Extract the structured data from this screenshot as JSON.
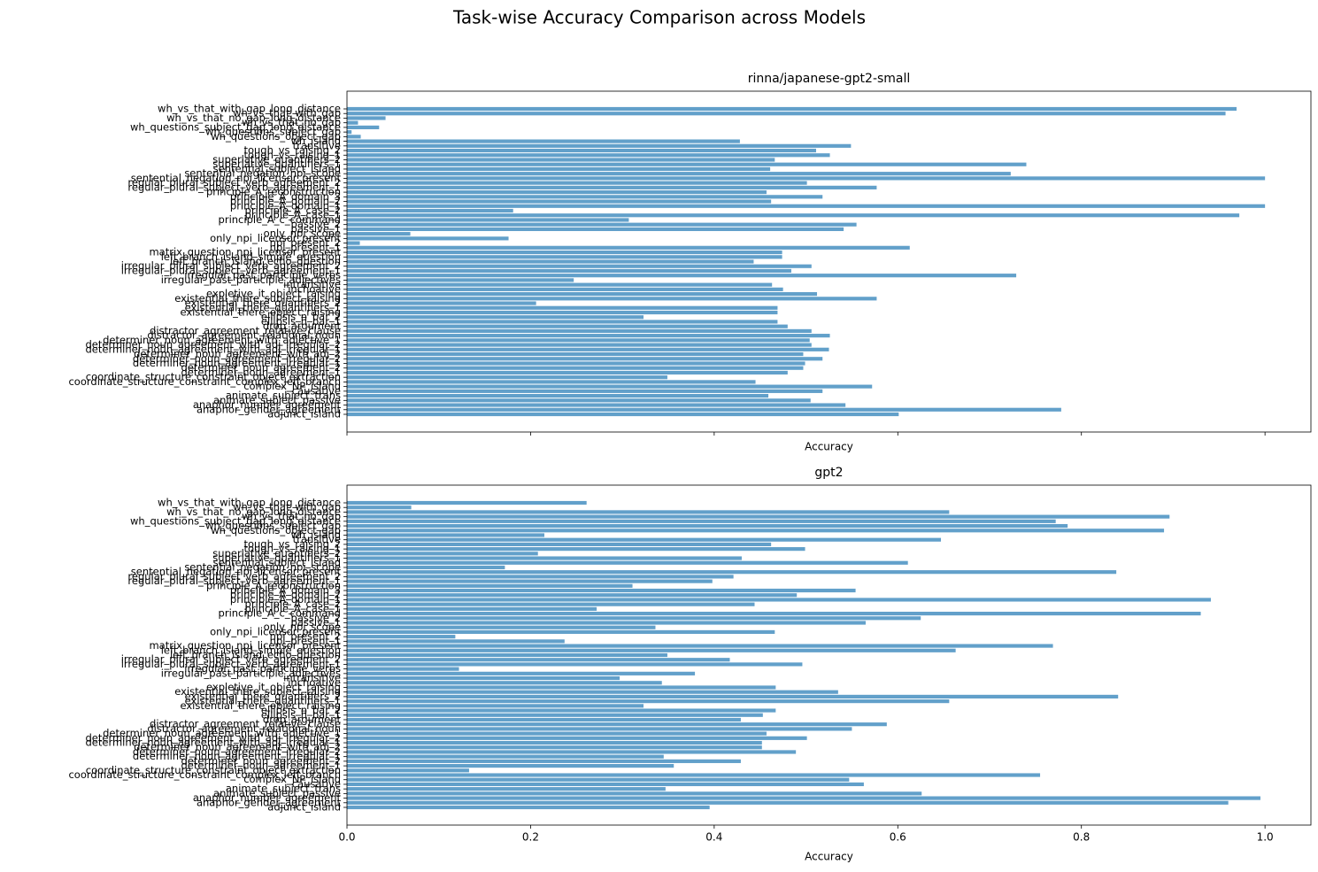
{
  "title": "Task-wise Accuracy Comparison across Models",
  "chart_data": [
    {
      "type": "barh",
      "title": "rinna/japanese-gpt2-small",
      "xlabel": "Accuracy",
      "color": "#1f77b4",
      "xlim": [
        0,
        1.05
      ],
      "xticks": [
        0,
        0.2,
        0.4,
        0.6,
        0.8,
        1.0
      ],
      "categories": [
        "adjunct_island",
        "anaphor_gender_agreement",
        "anaphor_number_agreement",
        "animate_subject_passive",
        "animate_subject_trans",
        "causative",
        "complex_NP_island",
        "coordinate_structure_constraint_complex_left_branch",
        "coordinate_structure_constraint_object_extraction",
        "determiner_noun_agreement_1",
        "determiner_noun_agreement_2",
        "determiner_noun_agreement_irregular_1",
        "determiner_noun_agreement_irregular_2",
        "determiner_noun_agreement_with_adj_2",
        "determiner_noun_agreement_with_adj_irregular_1",
        "determiner_noun_agreement_with_adj_irregular_2",
        "determiner_noun_agreement_with_adjective_1",
        "distractor_agreement_relational_noun",
        "distractor_agreement_relative_clause",
        "drop_argument",
        "ellipsis_n_bar_1",
        "ellipsis_n_bar_2",
        "existential_there_object_raising",
        "existential_there_quantifiers_1",
        "existential_there_quantifiers_2",
        "existential_there_subject_raising",
        "expletive_it_object_raising",
        "inchoative",
        "intransitive",
        "irregular_past_participle_adjectives",
        "irregular_past_participle_verbs",
        "irregular_plural_subject_verb_agreement_1",
        "irregular_plural_subject_verb_agreement_2",
        "left_branch_island_echo_question",
        "left_branch_island_simple_question",
        "matrix_question_npi_licensor_present",
        "npi_present_1",
        "npi_present_2",
        "only_npi_licensor_present",
        "only_npi_scope",
        "passive_1",
        "passive_2",
        "principle_A_c_command",
        "principle_A_case_1",
        "principle_A_case_2",
        "principle_A_domain_1",
        "principle_A_domain_2",
        "principle_A_domain_3",
        "principle_A_reconstruction",
        "regular_plural_subject_verb_agreement_1",
        "regular_plural_subject_verb_agreement_2",
        "sentential_negation_npi_licensor_present",
        "sentential_negation_npi_scope",
        "sentential_subject_island",
        "superlative_quantifiers_1",
        "superlative_quantifiers_2",
        "tough_vs_raising_1",
        "tough_vs_raising_2",
        "transitive",
        "wh_island",
        "wh_questions_object_gap",
        "wh_questions_subject_gap",
        "wh_questions_subject_gap_long_distance",
        "wh_vs_that_no_gap",
        "wh_vs_that_no_gap_long_distance",
        "wh_vs_that_with_gap",
        "wh_vs_that_with_gap_long_distance"
      ],
      "values": [
        0.601,
        0.778,
        0.543,
        0.505,
        0.459,
        0.518,
        0.572,
        0.445,
        0.349,
        0.48,
        0.497,
        0.499,
        0.518,
        0.497,
        0.525,
        0.506,
        0.504,
        0.526,
        0.506,
        0.48,
        0.469,
        0.323,
        0.469,
        0.469,
        0.206,
        0.577,
        0.512,
        0.475,
        0.463,
        0.247,
        0.729,
        0.484,
        0.506,
        0.443,
        0.474,
        0.474,
        0.613,
        0.014,
        0.176,
        0.069,
        0.541,
        0.555,
        0.307,
        0.972,
        0.181,
        1.0,
        0.462,
        0.518,
        0.457,
        0.577,
        0.501,
        1.0,
        0.723,
        0.461,
        0.74,
        0.466,
        0.526,
        0.511,
        0.549,
        0.428,
        0.015,
        0.005,
        0.035,
        0.012,
        0.042,
        0.957,
        0.969
      ]
    },
    {
      "type": "barh",
      "title": "gpt2",
      "xlabel": "Accuracy",
      "color": "#1f77b4",
      "xlim": [
        0,
        1.05
      ],
      "xticks": [
        {
          "value": 0,
          "label": "0.0"
        },
        0.2,
        0.4,
        0.6,
        0.8,
        {
          "value": 1.0,
          "label": "1.0"
        }
      ],
      "categories": [
        "adjunct_island",
        "anaphor_gender_agreement",
        "anaphor_number_agreement",
        "animate_subject_passive",
        "animate_subject_trans",
        "causative",
        "complex_NP_island",
        "coordinate_structure_constraint_complex_left_branch",
        "coordinate_structure_constraint_object_extraction",
        "determiner_noun_agreement_1",
        "determiner_noun_agreement_2",
        "determiner_noun_agreement_irregular_1",
        "determiner_noun_agreement_irregular_2",
        "determiner_noun_agreement_with_adj_2",
        "determiner_noun_agreement_with_adj_irregular_1",
        "determiner_noun_agreement_with_adj_irregular_2",
        "determiner_noun_agreement_with_adjective_1",
        "distractor_agreement_relational_noun",
        "distractor_agreement_relative_clause",
        "drop_argument",
        "ellipsis_n_bar_1",
        "ellipsis_n_bar_2",
        "existential_there_object_raising",
        "existential_there_quantifiers_1",
        "existential_there_quantifiers_2",
        "existential_there_subject_raising",
        "expletive_it_object_raising",
        "inchoative",
        "intransitive",
        "irregular_past_participle_adjectives",
        "irregular_past_participle_verbs",
        "irregular_plural_subject_verb_agreement_1",
        "irregular_plural_subject_verb_agreement_2",
        "left_branch_island_echo_question",
        "left_branch_island_simple_question",
        "matrix_question_npi_licensor_present",
        "npi_present_1",
        "npi_present_2",
        "only_npi_licensor_present",
        "only_npi_scope",
        "passive_1",
        "passive_2",
        "principle_A_c_command",
        "principle_A_case_1",
        "principle_A_case_2",
        "principle_A_domain_1",
        "principle_A_domain_2",
        "principle_A_domain_3",
        "principle_A_reconstruction",
        "regular_plural_subject_verb_agreement_1",
        "regular_plural_subject_verb_agreement_2",
        "sentential_negation_npi_licensor_present",
        "sentential_negation_npi_scope",
        "sentential_subject_island",
        "superlative_quantifiers_1",
        "superlative_quantifiers_2",
        "tough_vs_raising_1",
        "tough_vs_raising_2",
        "transitive",
        "wh_island",
        "wh_questions_object_gap",
        "wh_questions_subject_gap",
        "wh_questions_subject_gap_long_distance",
        "wh_vs_that_no_gap",
        "wh_vs_that_no_gap_long_distance",
        "wh_vs_that_with_gap",
        "wh_vs_that_with_gap_long_distance"
      ],
      "values": [
        0.395,
        0.96,
        0.995,
        0.626,
        0.347,
        0.563,
        0.547,
        0.755,
        0.133,
        0.356,
        0.429,
        0.345,
        0.489,
        0.452,
        0.452,
        0.501,
        0.457,
        0.55,
        0.588,
        0.429,
        0.453,
        0.467,
        0.323,
        0.656,
        0.84,
        0.535,
        0.467,
        0.343,
        0.297,
        0.379,
        0.122,
        0.496,
        0.417,
        0.349,
        0.663,
        0.769,
        0.237,
        0.118,
        0.466,
        0.336,
        0.565,
        0.625,
        0.93,
        0.272,
        0.444,
        0.941,
        0.49,
        0.554,
        0.311,
        0.398,
        0.421,
        0.838,
        0.172,
        0.611,
        0.43,
        0.208,
        0.499,
        0.462,
        0.647,
        0.215,
        0.89,
        0.785,
        0.772,
        0.896,
        0.656,
        0.07,
        0.261
      ]
    }
  ]
}
